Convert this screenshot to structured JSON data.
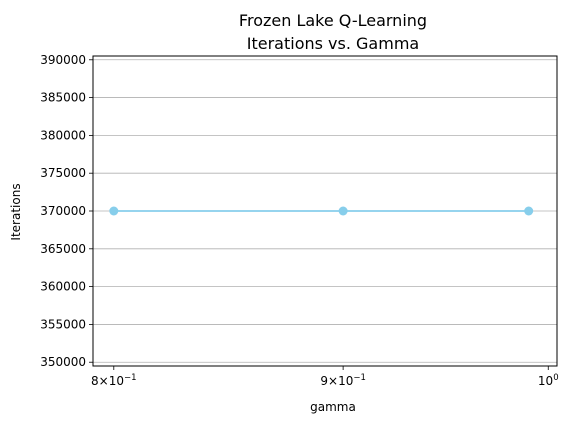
{
  "chart_data": {
    "type": "line",
    "title_lines": [
      "Frozen Lake Q-Learning",
      "Iterations vs. Gamma"
    ],
    "xlabel": "gamma",
    "ylabel": "Iterations",
    "x_scale": "log",
    "xlim": [
      0.7915,
      1.0045
    ],
    "ylim": [
      349500,
      390500
    ],
    "grid": "horizontal",
    "x_ticks": [
      {
        "value": 0.8,
        "base": "8",
        "times": "×",
        "ten": "10",
        "exp": "−1"
      },
      {
        "value": 0.9,
        "base": "9",
        "times": "×",
        "ten": "10",
        "exp": "−1"
      },
      {
        "value": 1.0,
        "base": "",
        "times": "",
        "ten": "10",
        "exp": "0"
      }
    ],
    "y_ticks": [
      350000,
      355000,
      360000,
      365000,
      370000,
      375000,
      380000,
      385000,
      390000
    ],
    "y_tick_labels": [
      "350000",
      "355000",
      "360000",
      "365000",
      "370000",
      "375000",
      "380000",
      "385000",
      "390000"
    ],
    "series": [
      {
        "x": [
          0.8,
          0.9,
          0.99
        ],
        "y": [
          370000,
          370000,
          370000
        ],
        "color": "#87ceeb"
      }
    ]
  }
}
